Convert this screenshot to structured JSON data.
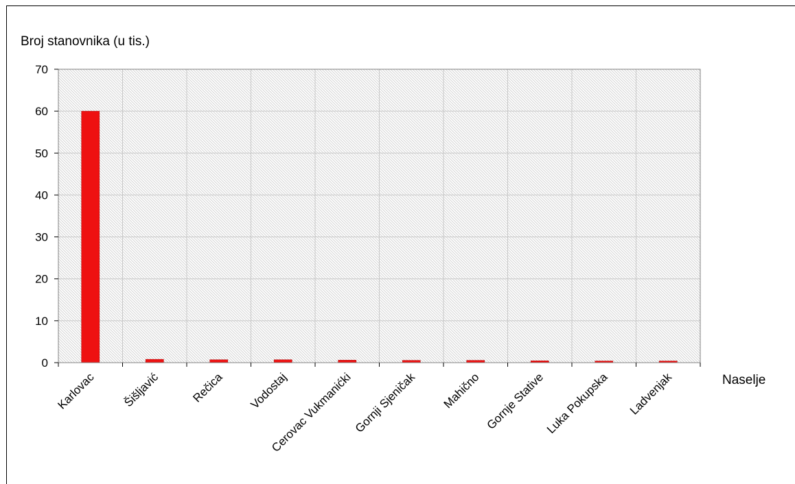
{
  "chart_data": {
    "type": "bar",
    "ylabel": "Broj stanovnika (u tis.)",
    "xlabel": "Naselje",
    "categories": [
      "Karlovac",
      "Šišljavić",
      "Rečica",
      "Vodostaj",
      "Cerovac Vukmanićki",
      "Gornji Sjeničak",
      "Mahično",
      "Gornje Stative",
      "Luka Pokupska",
      "Ladvenjak"
    ],
    "values": [
      60,
      0.8,
      0.7,
      0.7,
      0.6,
      0.55,
      0.55,
      0.45,
      0.4,
      0.4
    ],
    "ylim": [
      0,
      70
    ],
    "yticks": [
      0,
      10,
      20,
      30,
      40,
      50,
      60,
      70
    ],
    "grid": true,
    "legend": "none",
    "colors": {
      "bar": "#ee1111",
      "bar_edge": "#aa0000",
      "grid": "#c8c8c8",
      "hatch": "#d8d8d8",
      "axis": "#808080"
    }
  }
}
